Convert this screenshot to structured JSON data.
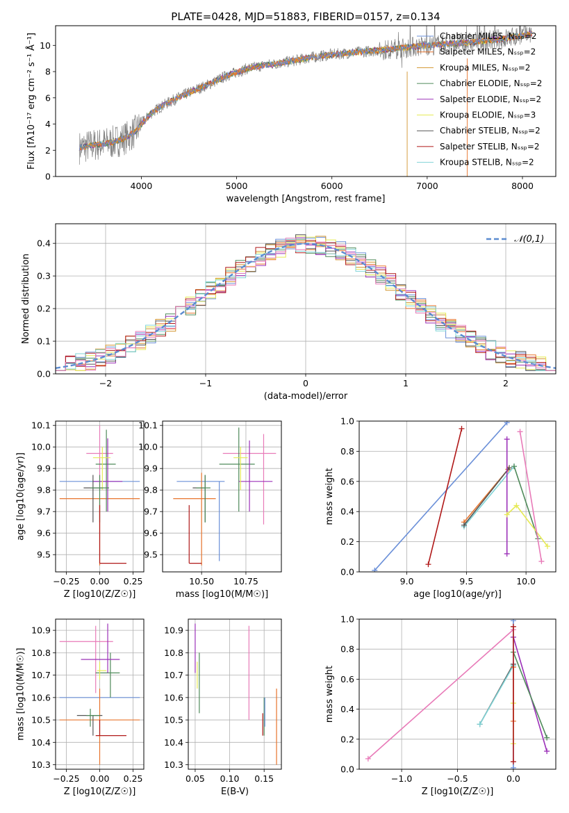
{
  "figure_title": "PLATE=0428, MJD=51883, FIBERID=0157, z=0.134",
  "colors": {
    "ChabrierMILES": "#6a8fd8",
    "SalpeterMILES": "#e8742c",
    "KroupaMILES": "#d2942e",
    "ChabrierELODIE": "#4f8a5a",
    "SalpeterELODIE": "#9b30b8",
    "KroupaELODIE": "#e6ea55",
    "ChabrierSTELIB": "#555555",
    "SalpeterSTELIB": "#b01818",
    "KroupaSTELIB": "#7fd3d6",
    "pink": "#e87ab8",
    "data": "#808080"
  },
  "chart_data": [
    {
      "id": "spectrum",
      "type": "line",
      "title": "PLATE=0428, MJD=51883, FIBERID=0157, z=0.134",
      "xlabel": "wavelength [Angstrom, rest frame]",
      "ylabel": "Flux [fλ10⁻¹⁷ erg cm⁻² s⁻¹ Å⁻¹]",
      "xlim": [
        3100,
        8350
      ],
      "ylim": [
        0,
        11.5
      ],
      "xticks": [
        "4000",
        "5000",
        "6000",
        "7000",
        "8000"
      ],
      "xtick_values": [
        4000,
        5000,
        6000,
        7000,
        8000
      ],
      "yticks": [
        "0",
        "2",
        "4",
        "6",
        "8",
        "10"
      ],
      "ytick_values": [
        0,
        2,
        4,
        6,
        8,
        10
      ],
      "legend_position": "top-right",
      "legend": [
        {
          "name": "Chabrier MILES, N_SSP=2",
          "color": "#6a8fd8"
        },
        {
          "name": "Salpeter MILES, N_SSP=2",
          "color": "#e8742c"
        },
        {
          "name": "Kroupa MILES, N_SSP=2",
          "color": "#d2942e"
        },
        {
          "name": "Chabrier ELODIE, N_SSP=2",
          "color": "#4f8a5a"
        },
        {
          "name": "Salpeter ELODIE, N_SSP=2",
          "color": "#9b30b8"
        },
        {
          "name": "Kroupa ELODIE, N_SSP=3",
          "color": "#e6ea55"
        },
        {
          "name": "Chabrier STELIB, N_SSP=2",
          "color": "#555555"
        },
        {
          "name": "Salpeter STELIB, N_SSP=2",
          "color": "#b01818"
        },
        {
          "name": "Kroupa STELIB, N_SSP=2",
          "color": "#7fd3d6"
        }
      ],
      "continuum": [
        [
          3350,
          2.2
        ],
        [
          3500,
          2.4
        ],
        [
          3700,
          2.6
        ],
        [
          3850,
          3.0
        ],
        [
          3950,
          3.5
        ],
        [
          4000,
          4.0
        ],
        [
          4100,
          4.8
        ],
        [
          4200,
          5.3
        ],
        [
          4300,
          5.7
        ],
        [
          4500,
          6.4
        ],
        [
          4700,
          7.0
        ],
        [
          4900,
          7.7
        ],
        [
          5100,
          8.2
        ],
        [
          5300,
          8.5
        ],
        [
          5500,
          8.7
        ],
        [
          5800,
          9.1
        ],
        [
          6000,
          9.3
        ],
        [
          6300,
          9.5
        ],
        [
          6600,
          9.7
        ],
        [
          7000,
          10.0
        ],
        [
          7400,
          10.2
        ],
        [
          7800,
          10.5
        ],
        [
          8100,
          10.9
        ]
      ]
    },
    {
      "id": "residuals",
      "type": "line",
      "xlabel": "(data-model)/error",
      "ylabel": "Normed distribution",
      "xlim": [
        -2.5,
        2.5
      ],
      "ylim": [
        0,
        0.46
      ],
      "xticks": [
        "−2",
        "−1",
        "0",
        "1",
        "2"
      ],
      "xtick_values": [
        -2,
        -1,
        0,
        1,
        2
      ],
      "yticks": [
        "0.0",
        "0.1",
        "0.2",
        "0.3",
        "0.4"
      ],
      "ytick_values": [
        0,
        0.1,
        0.2,
        0.3,
        0.4
      ],
      "grid": true,
      "legend_position": "top-right",
      "legend": [
        {
          "name": "𝒩(0,1)",
          "color": "#5b8bd0"
        }
      ],
      "gaussian": {
        "mean": 0,
        "sigma": 1
      }
    },
    {
      "id": "age_vs_Z",
      "type": "scatter",
      "xlabel": "Z [log10(Z/Z☉)]",
      "ylabel": "age [log10(age/yr)]",
      "xlim": [
        -0.33,
        0.33
      ],
      "ylim": [
        9.42,
        10.12
      ],
      "xticks": [
        "−0.25",
        "0.00",
        "0.25"
      ],
      "xtick_values": [
        -0.25,
        0,
        0.25
      ],
      "yticks": [
        "9.5",
        "9.6",
        "9.7",
        "9.8",
        "9.9",
        "10.0",
        "10.1"
      ],
      "ytick_values": [
        9.5,
        9.6,
        9.7,
        9.8,
        9.9,
        10.0,
        10.1
      ],
      "grid": true,
      "points": [
        {
          "x": -0.3,
          "x_lo": -0.3,
          "x_hi": 0.3,
          "y": 9.84,
          "y_lo": 9.84,
          "y_hi": 9.84,
          "color": "#6a8fd8"
        },
        {
          "x": 0.0,
          "x_lo": -0.3,
          "x_hi": 0.3,
          "y": 9.76,
          "y_lo": 9.45,
          "y_hi": 9.76,
          "color": "#e8742c"
        },
        {
          "x": 0.0,
          "x_lo": -0.1,
          "x_hi": 0.1,
          "y": 9.97,
          "y_lo": 9.8,
          "y_hi": 10.1,
          "color": "#e87ab8"
        },
        {
          "x": 0.05,
          "x_lo": -0.03,
          "x_hi": 0.12,
          "y": 9.92,
          "y_lo": 9.7,
          "y_hi": 10.08,
          "color": "#4f8a5a"
        },
        {
          "x": 0.06,
          "x_lo": -0.05,
          "x_hi": 0.17,
          "y": 9.84,
          "y_lo": 9.7,
          "y_hi": 10.04,
          "color": "#9b30b8"
        },
        {
          "x": 0.02,
          "x_lo": -0.05,
          "x_hi": 0.08,
          "y": 9.95,
          "y_lo": 9.8,
          "y_hi": 10.0,
          "color": "#e6ea55"
        },
        {
          "x": -0.05,
          "x_lo": -0.12,
          "x_hi": 0.02,
          "y": 9.81,
          "y_lo": 9.65,
          "y_hi": 9.87,
          "color": "#555555"
        },
        {
          "x": 0.0,
          "x_lo": -0.07,
          "x_hi": 0.07,
          "y": 9.81,
          "y_lo": 9.65,
          "y_hi": 9.87,
          "color": "#4f8a5a"
        },
        {
          "x": 0.0,
          "x_lo": 0.0,
          "x_hi": 0.2,
          "y": 9.46,
          "y_lo": 9.46,
          "y_hi": 9.73,
          "color": "#b01818"
        }
      ]
    },
    {
      "id": "age_vs_mass",
      "type": "scatter",
      "xlabel": "mass [log10(M/M☉)]",
      "xlim": [
        10.28,
        10.95
      ],
      "ylim": [
        9.42,
        10.12
      ],
      "xticks": [
        "10.50",
        "10.75"
      ],
      "xtick_values": [
        10.5,
        10.75
      ],
      "yticks": [
        "9.5",
        "9.6",
        "9.7",
        "9.8",
        "9.9",
        "10.0",
        "10.1"
      ],
      "ytick_values": [
        9.5,
        9.6,
        9.7,
        9.8,
        9.9,
        10.0,
        10.1
      ],
      "grid": true,
      "points": [
        {
          "x": 10.6,
          "x_lo": 10.36,
          "x_hi": 10.63,
          "y": 9.84,
          "y_lo": 9.47,
          "y_hi": 9.84,
          "color": "#6a8fd8"
        },
        {
          "x": 10.5,
          "x_lo": 10.34,
          "x_hi": 10.58,
          "y": 9.76,
          "y_lo": 9.45,
          "y_hi": 9.88,
          "color": "#e8742c"
        },
        {
          "x": 10.85,
          "x_lo": 10.62,
          "x_hi": 10.92,
          "y": 9.97,
          "y_lo": 9.64,
          "y_hi": 10.06,
          "color": "#e87ab8"
        },
        {
          "x": 10.71,
          "x_lo": 10.6,
          "x_hi": 10.8,
          "y": 9.92,
          "y_lo": 9.7,
          "y_hi": 10.09,
          "color": "#4f8a5a"
        },
        {
          "x": 10.77,
          "x_lo": 10.71,
          "x_hi": 10.9,
          "y": 9.84,
          "y_lo": 9.7,
          "y_hi": 10.03,
          "color": "#9b30b8"
        },
        {
          "x": 10.72,
          "x_lo": 10.68,
          "x_hi": 10.76,
          "y": 9.95,
          "y_lo": 9.8,
          "y_hi": 10.0,
          "color": "#e6ea55"
        },
        {
          "x": 10.52,
          "x_lo": 10.45,
          "x_hi": 10.52,
          "y": 9.81,
          "y_lo": 9.65,
          "y_hi": 9.87,
          "color": "#555555"
        },
        {
          "x": 10.52,
          "x_lo": 10.47,
          "x_hi": 10.55,
          "y": 9.81,
          "y_lo": 9.65,
          "y_hi": 9.87,
          "color": "#4f8a5a"
        },
        {
          "x": 10.43,
          "x_lo": 10.43,
          "x_hi": 10.5,
          "y": 9.46,
          "y_lo": 9.46,
          "y_hi": 9.73,
          "color": "#b01818"
        }
      ]
    },
    {
      "id": "massweight_vs_age",
      "type": "line",
      "xlabel": "age [log10(age/yr)]",
      "ylabel": "mass weight",
      "xlim": [
        8.6,
        10.25
      ],
      "ylim": [
        0,
        1
      ],
      "xticks": [
        "9.0",
        "9.5",
        "10.0"
      ],
      "xtick_values": [
        9.0,
        9.5,
        10.0
      ],
      "yticks": [
        "0.0",
        "0.2",
        "0.4",
        "0.6",
        "0.8",
        "1.0"
      ],
      "ytick_values": [
        0,
        0.2,
        0.4,
        0.6,
        0.8,
        1.0
      ],
      "grid": true,
      "series": [
        {
          "x": [
            8.73,
            9.84
          ],
          "y": [
            0.01,
            0.99
          ],
          "color": "#6a8fd8"
        },
        {
          "x": [
            9.48,
            9.85
          ],
          "y": [
            0.33,
            0.68
          ],
          "color": "#e8742c"
        },
        {
          "x": [
            9.48,
            9.9
          ],
          "y": [
            0.3,
            0.7
          ],
          "color": "#7fd3d6"
        },
        {
          "x": [
            9.48,
            9.86
          ],
          "y": [
            0.31,
            0.69
          ],
          "color": "#555555"
        },
        {
          "x": [
            9.9,
            10.1
          ],
          "y": [
            0.7,
            0.22
          ],
          "color": "#4f8a5a"
        },
        {
          "x": [
            9.84,
            9.84
          ],
          "y": [
            0.12,
            0.88
          ],
          "color": "#9b30b8"
        },
        {
          "x": [
            9.84,
            9.92,
            10.18
          ],
          "y": [
            0.38,
            0.44,
            0.17
          ],
          "color": "#e6ea55"
        },
        {
          "x": [
            9.95,
            10.13
          ],
          "y": [
            0.93,
            0.07
          ],
          "color": "#e87ab8"
        },
        {
          "x": [
            9.18,
            9.46
          ],
          "y": [
            0.05,
            0.95
          ],
          "color": "#b01818"
        }
      ]
    },
    {
      "id": "mass_vs_Z",
      "type": "scatter",
      "xlabel": "Z [log10(Z/Z☉)]",
      "ylabel": "mass [log10(M/M☉)]",
      "xlim": [
        -0.33,
        0.33
      ],
      "ylim": [
        10.28,
        10.95
      ],
      "xticks": [
        "−0.25",
        "0.00",
        "0.25"
      ],
      "xtick_values": [
        -0.25,
        0,
        0.25
      ],
      "yticks": [
        "10.3",
        "10.4",
        "10.5",
        "10.6",
        "10.7",
        "10.8",
        "10.9"
      ],
      "ytick_values": [
        10.3,
        10.4,
        10.5,
        10.6,
        10.7,
        10.8,
        10.9
      ],
      "grid": true,
      "points": [
        {
          "x": -0.3,
          "x_lo": -0.3,
          "x_hi": 0.3,
          "y": 10.6,
          "y_lo": 10.6,
          "y_hi": 10.6,
          "color": "#6a8fd8"
        },
        {
          "x": 0.0,
          "x_lo": -0.3,
          "x_hi": 0.3,
          "y": 10.5,
          "y_lo": 10.3,
          "y_hi": 10.64,
          "color": "#e8742c"
        },
        {
          "x": -0.03,
          "x_lo": -0.3,
          "x_hi": 0.1,
          "y": 10.85,
          "y_lo": 10.62,
          "y_hi": 10.92,
          "color": "#e87ab8"
        },
        {
          "x": 0.08,
          "x_lo": -0.03,
          "x_hi": 0.15,
          "y": 10.71,
          "y_lo": 10.6,
          "y_hi": 10.8,
          "color": "#4f8a5a"
        },
        {
          "x": 0.06,
          "x_lo": -0.14,
          "x_hi": 0.15,
          "y": 10.77,
          "y_lo": 10.71,
          "y_hi": 10.93,
          "color": "#9b30b8"
        },
        {
          "x": 0.0,
          "x_lo": -0.02,
          "x_hi": 0.05,
          "y": 10.72,
          "y_lo": 10.68,
          "y_hi": 10.76,
          "color": "#e6ea55"
        },
        {
          "x": -0.05,
          "x_lo": -0.17,
          "x_hi": 0.02,
          "y": 10.52,
          "y_lo": 10.43,
          "y_hi": 10.52,
          "color": "#555555"
        },
        {
          "x": -0.07,
          "x_lo": -0.1,
          "x_hi": 0.0,
          "y": 10.52,
          "y_lo": 10.47,
          "y_hi": 10.55,
          "color": "#4f8a5a"
        },
        {
          "x": 0.0,
          "x_lo": -0.03,
          "x_hi": 0.2,
          "y": 10.43,
          "y_lo": 10.43,
          "y_hi": 10.5,
          "color": "#b01818"
        }
      ]
    },
    {
      "id": "mass_vs_EBV",
      "type": "scatter",
      "xlabel": "E(B-V)",
      "xlim": [
        0.04,
        0.175
      ],
      "ylim": [
        10.28,
        10.95
      ],
      "xticks": [
        "0.05",
        "0.10",
        "0.15"
      ],
      "xtick_values": [
        0.05,
        0.1,
        0.15
      ],
      "yticks": [
        "10.3",
        "10.4",
        "10.5",
        "10.6",
        "10.7",
        "10.8",
        "10.9"
      ],
      "ytick_values": [
        10.3,
        10.4,
        10.5,
        10.6,
        10.7,
        10.8,
        10.9
      ],
      "grid": true,
      "points": [
        {
          "x": 0.05,
          "y_lo": 10.71,
          "y_hi": 10.93,
          "color": "#9b30b8"
        },
        {
          "x": 0.053,
          "y_lo": 10.64,
          "y_hi": 10.76,
          "color": "#e6ea55"
        },
        {
          "x": 0.056,
          "y_lo": 10.53,
          "y_hi": 10.8,
          "color": "#4f8a5a"
        },
        {
          "x": 0.128,
          "y_lo": 10.5,
          "y_hi": 10.92,
          "color": "#e87ab8"
        },
        {
          "x": 0.148,
          "y_lo": 10.43,
          "y_hi": 10.53,
          "color": "#b01818"
        },
        {
          "x": 0.15,
          "y_lo": 10.43,
          "y_hi": 10.6,
          "color": "#4f8a5a"
        },
        {
          "x": 0.151,
          "y_lo": 10.47,
          "y_hi": 10.6,
          "color": "#6a8fd8"
        },
        {
          "x": 0.168,
          "y_lo": 10.3,
          "y_hi": 10.64,
          "color": "#e8742c"
        }
      ]
    },
    {
      "id": "massweight_vs_Z",
      "type": "line",
      "xlabel": "Z [log10(Z/Z☉)]",
      "ylabel": "mass weight",
      "xlim": [
        -1.38,
        0.38
      ],
      "ylim": [
        0,
        1
      ],
      "xticks": [
        "−1.0",
        "−0.5",
        "0.0"
      ],
      "xtick_values": [
        -1.0,
        -0.5,
        0.0
      ],
      "yticks": [
        "0.0",
        "0.2",
        "0.4",
        "0.6",
        "0.8",
        "1.0"
      ],
      "ytick_values": [
        0,
        0.2,
        0.4,
        0.6,
        0.8,
        1.0
      ],
      "grid": true,
      "series": [
        {
          "x": [
            -1.3,
            0.0
          ],
          "y": [
            0.07,
            0.93
          ],
          "color": "#e87ab8"
        },
        {
          "x": [
            -0.3,
            0.0
          ],
          "y": [
            0.3,
            0.7
          ],
          "color": "#555555"
        },
        {
          "x": [
            -0.3,
            0.0
          ],
          "y": [
            0.3,
            0.69
          ],
          "color": "#7fd3d6"
        },
        {
          "x": [
            0.0,
            0.3
          ],
          "y": [
            0.88,
            0.12
          ],
          "color": "#9b30b8"
        },
        {
          "x": [
            0.0,
            0.3
          ],
          "y": [
            0.78,
            0.21
          ],
          "color": "#4f8a5a"
        },
        {
          "x": [
            0.0,
            0.0
          ],
          "y": [
            0.01,
            0.99
          ],
          "color": "#6a8fd8"
        },
        {
          "x": [
            0.0,
            0.0
          ],
          "y": [
            0.17,
            0.44
          ],
          "color": "#e6ea55"
        },
        {
          "x": [
            0.0,
            0.0
          ],
          "y": [
            0.32,
            0.68
          ],
          "color": "#e8742c"
        },
        {
          "x": [
            0.0,
            0.0
          ],
          "y": [
            0.05,
            0.95
          ],
          "color": "#b01818"
        }
      ]
    }
  ]
}
